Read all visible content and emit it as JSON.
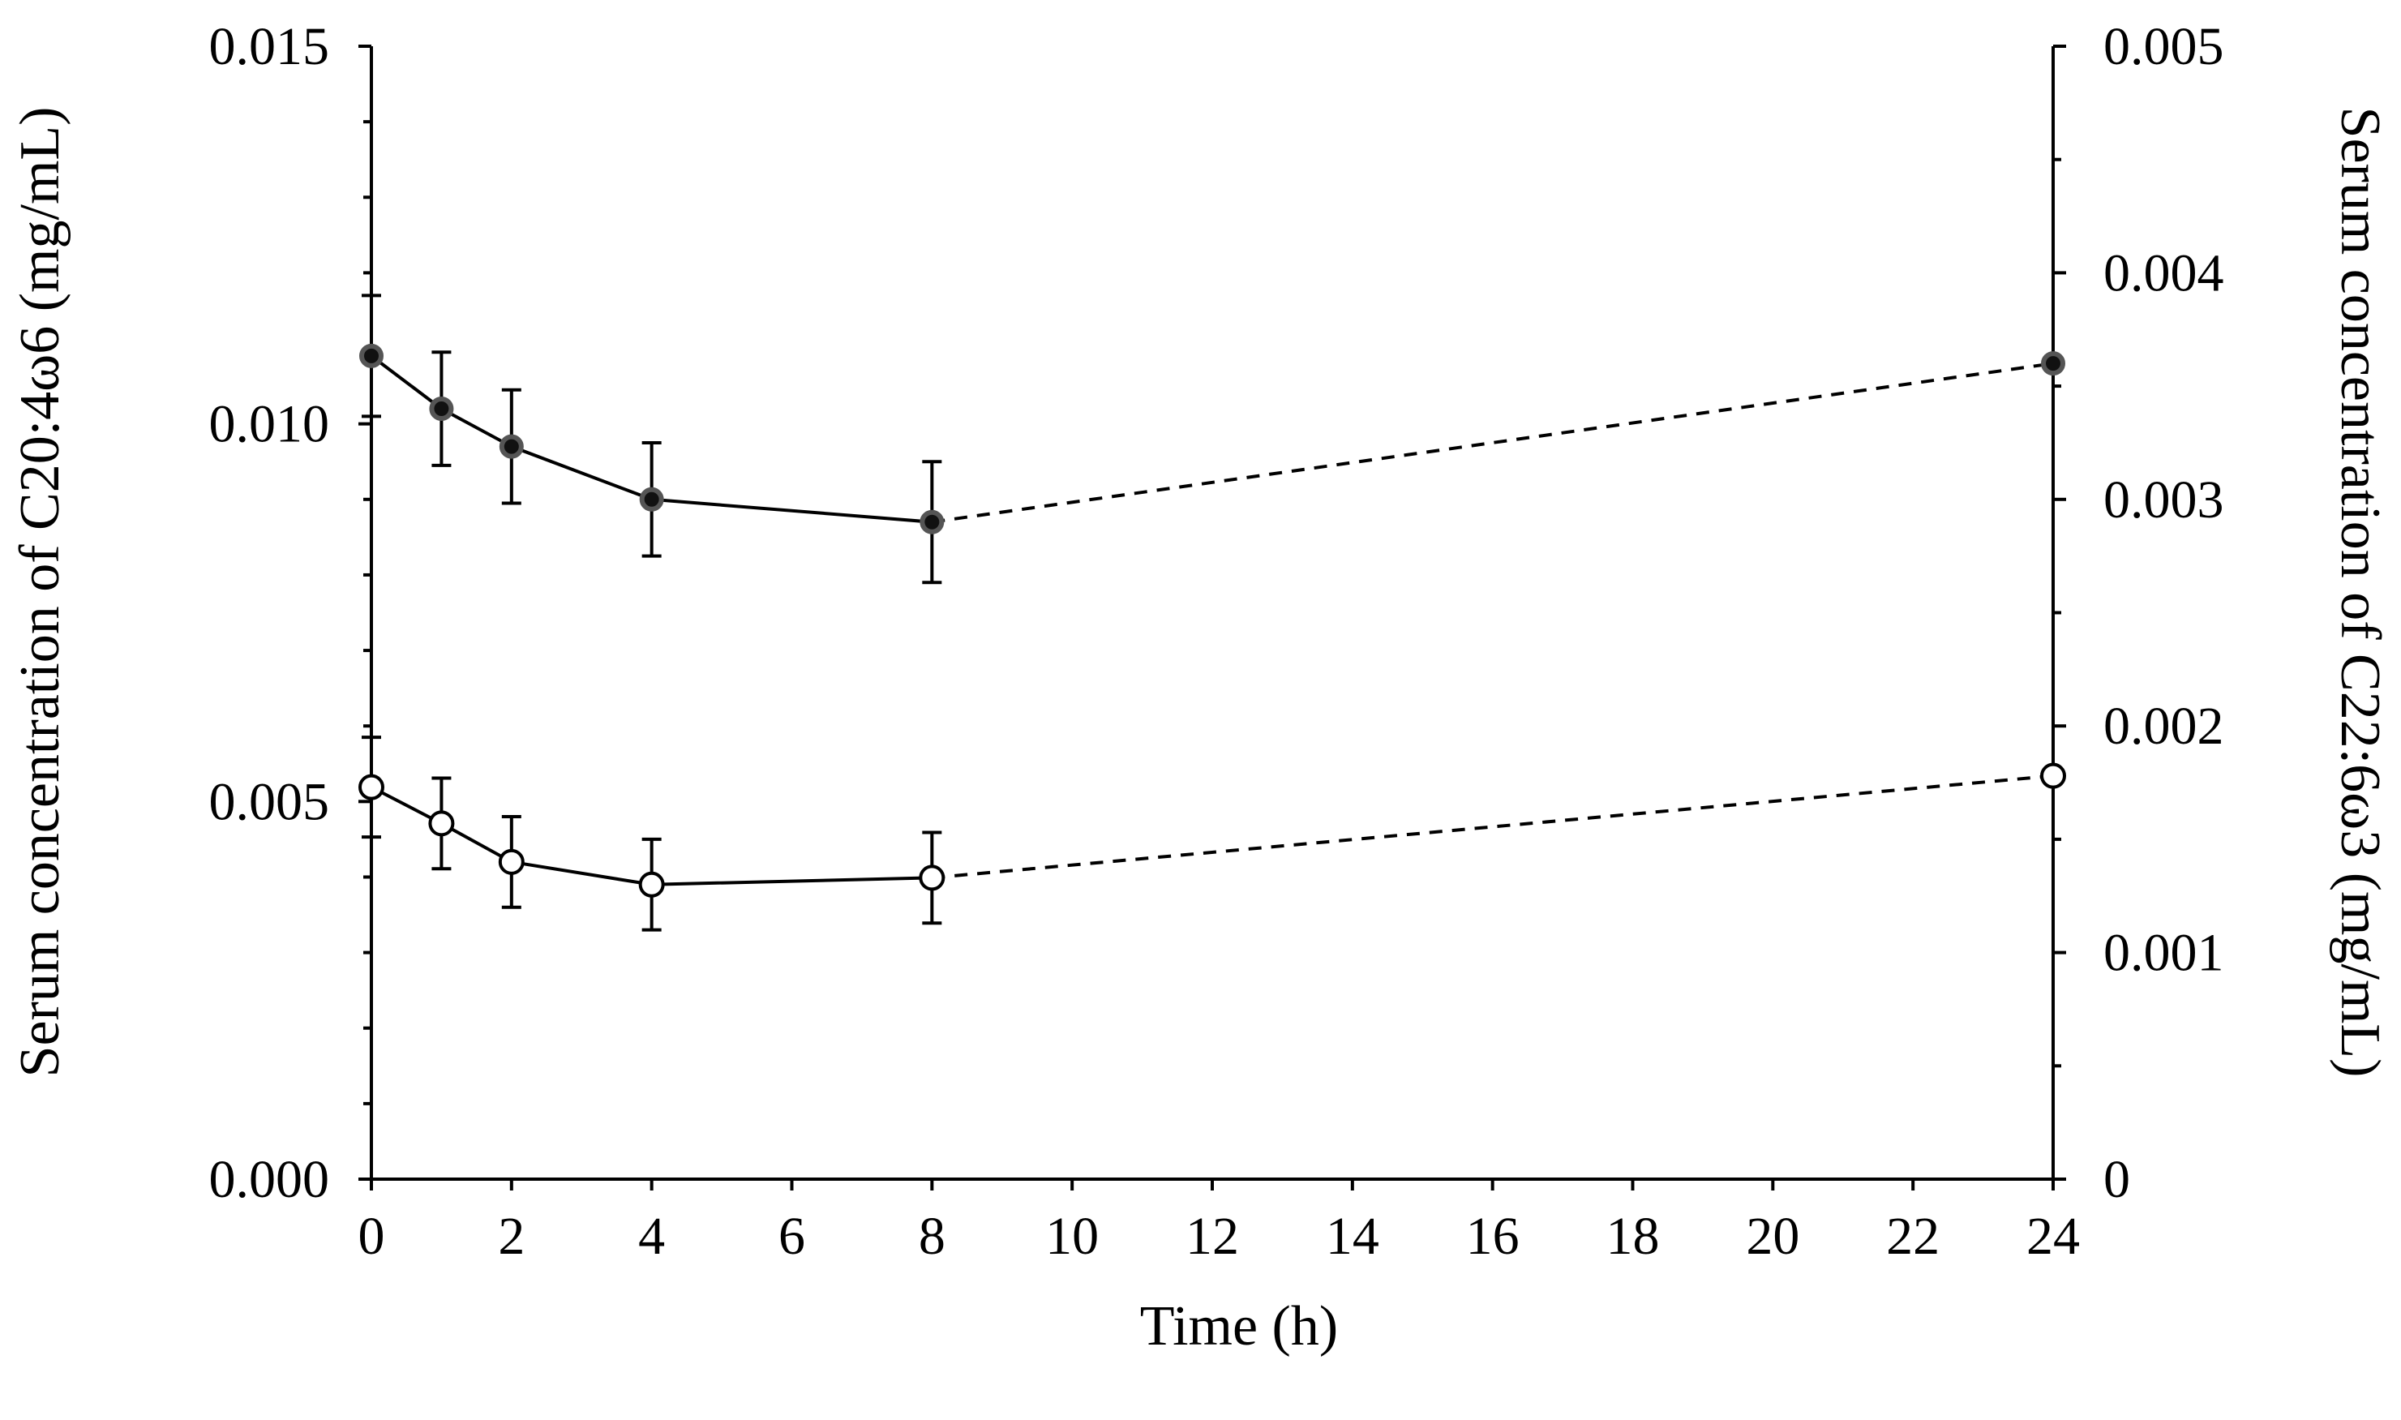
{
  "chart_data": {
    "type": "line",
    "title": "",
    "xlabel": "Time (h)",
    "ylabel_left": "Serum concentration of C20:4ω6 (mg/mL)",
    "ylabel_right": "Serum concentration of C22:6ω3 (mg/mL)",
    "xlim": [
      0,
      24
    ],
    "ylim_left": [
      0,
      0.015
    ],
    "ylim_right": [
      0,
      0.005
    ],
    "x_ticks": [
      0,
      2,
      4,
      6,
      8,
      10,
      12,
      14,
      16,
      18,
      20,
      22,
      24
    ],
    "x_tick_labels": [
      "0",
      "2",
      "4",
      "6",
      "8",
      "10",
      "12",
      "14",
      "16",
      "18",
      "20",
      "22",
      "24"
    ],
    "y_left_ticks": [
      0,
      0.005,
      0.01,
      0.015
    ],
    "y_left_tick_labels": [
      "0.000",
      "0.005",
      "0.010",
      "0.015"
    ],
    "y_right_ticks": [
      0,
      0.001,
      0.002,
      0.003,
      0.004,
      0.005
    ],
    "y_right_tick_labels": [
      "0",
      "0.001",
      "0.002",
      "0.003",
      "0.004",
      "0.005"
    ],
    "grid": false,
    "series": [
      {
        "name": "C20:4ω6",
        "axis": "left",
        "marker": "filled-circle",
        "x": [
          0,
          1,
          2,
          4,
          8,
          24
        ],
        "y": [
          0.0109,
          0.0102,
          0.0097,
          0.009,
          0.0087,
          0.0108
        ],
        "err": [
          0.0008,
          0.00075,
          0.00075,
          0.00075,
          0.0008,
          0
        ],
        "solid_until_x": 8
      },
      {
        "name": "C22:6ω3",
        "axis": "right",
        "marker": "open-circle",
        "x": [
          0,
          1,
          2,
          4,
          8,
          24
        ],
        "y": [
          0.00173,
          0.00157,
          0.0014,
          0.0013,
          0.00133,
          0.00178
        ],
        "err": [
          0.00022,
          0.0002,
          0.0002,
          0.0002,
          0.0002,
          0
        ],
        "solid_until_x": 8
      }
    ]
  }
}
